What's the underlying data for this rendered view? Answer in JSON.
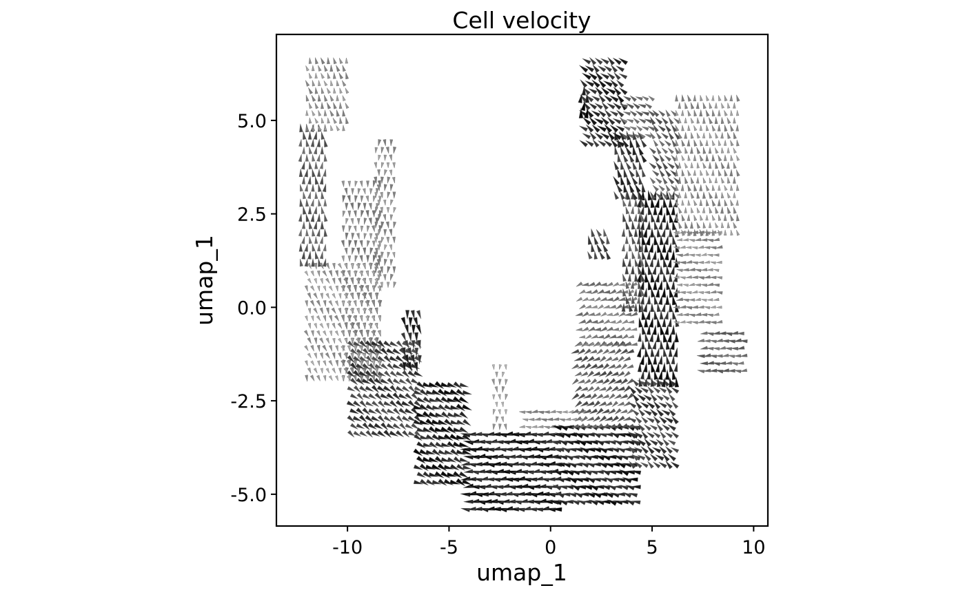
{
  "chart_data": {
    "type": "quiver",
    "title": "Cell velocity",
    "xlabel": "umap_1",
    "ylabel": "umap_1",
    "xlim": [
      -13.5,
      10.7
    ],
    "ylim": [
      -5.85,
      7.3
    ],
    "x_ticks": [
      -10,
      -5,
      0,
      5,
      10
    ],
    "x_tick_labels": [
      "-10",
      "-5",
      "0",
      "5",
      "10"
    ],
    "y_ticks": [
      5.0,
      2.5,
      0.0,
      -2.5,
      -5.0
    ],
    "y_tick_labels": [
      "5.0",
      "2.5",
      "0.0",
      "-2.5",
      "-5.0"
    ],
    "grid": false,
    "legend": "none",
    "arrow_color_scale": [
      "#d0d0d0",
      "#000000"
    ],
    "arrow_color_meaning": "darker arrows indicate larger velocity magnitude",
    "velocity_field": {
      "grid_spacing": [
        0.3,
        0.2
      ],
      "regions": [
        {
          "x_range": [
            -12.3,
            -11.1
          ],
          "y_range": [
            1.2,
            4.9
          ],
          "direction_deg": 90,
          "magnitude": 0.55
        },
        {
          "x_range": [
            -12.0,
            -10.0
          ],
          "y_range": [
            4.8,
            6.6
          ],
          "direction_deg": 105,
          "magnitude": 0.3
        },
        {
          "x_range": [
            -10.2,
            -8.4
          ],
          "y_range": [
            -1.9,
            3.4
          ],
          "direction_deg": -90,
          "magnitude": 0.35
        },
        {
          "x_range": [
            -8.6,
            -7.6
          ],
          "y_range": [
            0.6,
            4.4
          ],
          "direction_deg": -92,
          "magnitude": 0.3
        },
        {
          "x_range": [
            -12.0,
            -8.4
          ],
          "y_range": [
            -1.9,
            1.2
          ],
          "direction_deg": -70,
          "magnitude": 0.25
        },
        {
          "x_range": [
            -9.8,
            -6.4
          ],
          "y_range": [
            -3.4,
            -1.0
          ],
          "direction_deg": -35,
          "magnitude": 0.7
        },
        {
          "x_range": [
            -7.2,
            -6.4
          ],
          "y_range": [
            -1.6,
            -0.2
          ],
          "direction_deg": -80,
          "magnitude": 0.8
        },
        {
          "x_range": [
            -6.5,
            -4.0
          ],
          "y_range": [
            -4.7,
            -2.0
          ],
          "direction_deg": -25,
          "magnitude": 0.85
        },
        {
          "x_range": [
            -4.2,
            0.3
          ],
          "y_range": [
            -5.4,
            -3.4
          ],
          "direction_deg": 180,
          "magnitude": 0.9
        },
        {
          "x_range": [
            -2.8,
            -2.2
          ],
          "y_range": [
            -3.2,
            -1.6
          ],
          "direction_deg": -90,
          "magnitude": 0.2
        },
        {
          "x_range": [
            -1.4,
            1.6
          ],
          "y_range": [
            -3.2,
            -2.8
          ],
          "direction_deg": 180,
          "magnitude": 0.3
        },
        {
          "x_range": [
            0.3,
            4.2
          ],
          "y_range": [
            -5.2,
            -3.2
          ],
          "direction_deg": 165,
          "magnitude": 0.85
        },
        {
          "x_range": [
            1.2,
            4.0
          ],
          "y_range": [
            -3.2,
            -1.0
          ],
          "direction_deg": 210,
          "magnitude": 0.55
        },
        {
          "x_range": [
            4.0,
            6.1
          ],
          "y_range": [
            -4.2,
            -2.0
          ],
          "direction_deg": 140,
          "magnitude": 0.7
        },
        {
          "x_range": [
            4.4,
            6.2
          ],
          "y_range": [
            -2.0,
            3.0
          ],
          "direction_deg": 90,
          "magnitude": 0.85
        },
        {
          "x_range": [
            1.4,
            4.2
          ],
          "y_range": [
            -1.0,
            0.6
          ],
          "direction_deg": 200,
          "magnitude": 0.4
        },
        {
          "x_range": [
            1.9,
            2.8
          ],
          "y_range": [
            1.4,
            2.0
          ],
          "direction_deg": 110,
          "magnitude": 0.65
        },
        {
          "x_range": [
            3.6,
            4.6
          ],
          "y_range": [
            0.0,
            3.0
          ],
          "direction_deg": 95,
          "magnitude": 0.6
        },
        {
          "x_range": [
            3.2,
            4.6
          ],
          "y_range": [
            3.0,
            4.6
          ],
          "direction_deg": 110,
          "magnitude": 0.75
        },
        {
          "x_range": [
            1.6,
            3.6
          ],
          "y_range": [
            4.4,
            6.6
          ],
          "direction_deg": 140,
          "magnitude": 0.8
        },
        {
          "x_range": [
            1.5,
            1.9
          ],
          "y_range": [
            5.2,
            5.9
          ],
          "direction_deg": 90,
          "magnitude": 0.95
        },
        {
          "x_range": [
            3.6,
            5.0
          ],
          "y_range": [
            4.6,
            5.6
          ],
          "direction_deg": 150,
          "magnitude": 0.5
        },
        {
          "x_range": [
            5.0,
            6.2
          ],
          "y_range": [
            3.0,
            5.2
          ],
          "direction_deg": 130,
          "magnitude": 0.55
        },
        {
          "x_range": [
            6.2,
            9.2
          ],
          "y_range": [
            2.0,
            5.7
          ],
          "direction_deg": 100,
          "magnitude": 0.3
        },
        {
          "x_range": [
            6.2,
            8.4
          ],
          "y_range": [
            -0.4,
            2.0
          ],
          "direction_deg": 180,
          "magnitude": 0.3
        },
        {
          "x_range": [
            7.4,
            9.6
          ],
          "y_range": [
            -1.7,
            -0.6
          ],
          "direction_deg": 180,
          "magnitude": 0.5
        }
      ]
    }
  }
}
